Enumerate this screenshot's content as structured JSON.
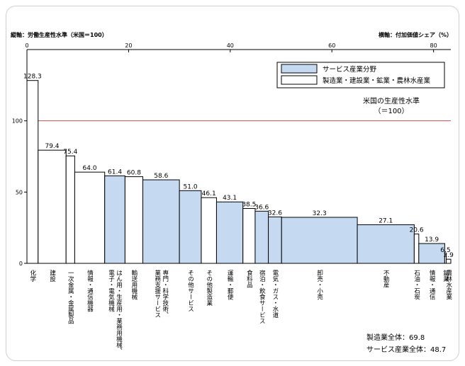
{
  "chart_data": {
    "type": "bar",
    "variant": "marimekko",
    "y_axis_title": "縦軸：労働生産性水準（米国＝100）",
    "x_axis_title": "横軸：付加価値シェア（%）",
    "xlim": [
      0,
      83.4
    ],
    "ylim": [
      0,
      150
    ],
    "x_ticks": [
      0,
      20,
      40,
      60,
      80
    ],
    "y_ticks": [
      0,
      50,
      100
    ],
    "reference_line": {
      "value": 100,
      "label": "米国の生産性水準",
      "label2": "（＝100）",
      "color": "#c0504d"
    },
    "legend": {
      "position": "top-right",
      "items": [
        {
          "name": "サービス産業分野",
          "color": "#c5d9f1"
        },
        {
          "name": "製造業・建設業・鉱業・農林水産業",
          "color": "#ffffff"
        }
      ]
    },
    "bars": [
      {
        "label": "化学",
        "value": 128.3,
        "width": 2.2,
        "kind": "manufacturing"
      },
      {
        "label": "建設",
        "value": 79.4,
        "width": 5.5,
        "kind": "manufacturing"
      },
      {
        "label": "一次金属・金属製品",
        "value": 75.4,
        "width": 1.7,
        "kind": "manufacturing"
      },
      {
        "label": "情報・通信機器",
        "value": 64.0,
        "width": 5.9,
        "kind": "manufacturing"
      },
      {
        "label": "はん用・生産用・業務用機械、電子・電気機械",
        "value": 61.4,
        "width": 4.0,
        "kind": "service"
      },
      {
        "label": "輸送用機械",
        "value": 60.8,
        "width": 3.5,
        "kind": "manufacturing"
      },
      {
        "label": "専門・科学技術、業務支援サービス",
        "value": 58.6,
        "width": 7.2,
        "kind": "service"
      },
      {
        "label": "その他サービス",
        "value": 51.0,
        "width": 4.3,
        "kind": "service"
      },
      {
        "label": "その他製造業",
        "value": 46.1,
        "width": 3.0,
        "kind": "manufacturing"
      },
      {
        "label": "運輸・郵便",
        "value": 43.1,
        "width": 5.2,
        "kind": "service"
      },
      {
        "label": "食料品",
        "value": 38.5,
        "width": 2.4,
        "kind": "manufacturing"
      },
      {
        "label": "宿泊・飲食サービス",
        "value": 36.6,
        "width": 2.6,
        "kind": "service"
      },
      {
        "label": "電気・ガス・水道",
        "value": 32.6,
        "width": 2.6,
        "kind": "service"
      },
      {
        "label": "卸売・小売",
        "value": 32.3,
        "width": 14.9,
        "kind": "service"
      },
      {
        "label": "不動産",
        "value": 27.1,
        "width": 11.2,
        "kind": "service"
      },
      {
        "label": "石油・石炭",
        "value": 20.6,
        "width": 0.9,
        "kind": "manufacturing"
      },
      {
        "label": "情報・通信",
        "value": 13.9,
        "width": 5.1,
        "kind": "service"
      },
      {
        "label": "鉱業",
        "value": 6.5,
        "width": 0.3,
        "kind": "manufacturing"
      },
      {
        "label": "農林水産業",
        "value": 2.9,
        "width": 0.9,
        "kind": "manufacturing"
      }
    ]
  },
  "summary": {
    "manufacturing": "製造業全体：69.8",
    "service": "サービス産業全体：48.7"
  }
}
